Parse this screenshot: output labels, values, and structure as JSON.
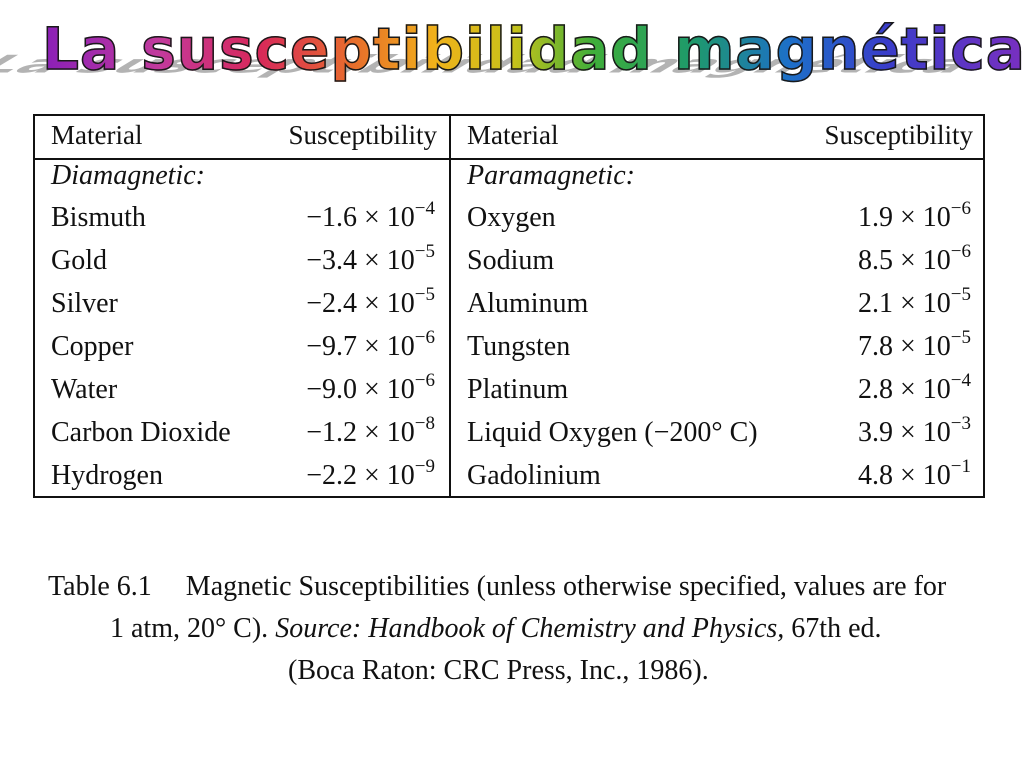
{
  "title": "La susceptibilidad magnética",
  "table": {
    "left": {
      "header_material": "Material",
      "header_susceptibility": "Susceptibility",
      "group": "Diamagnetic:",
      "rows": [
        {
          "material": "Bismuth",
          "mantissa": "−1.6 × 10",
          "exponent": "−4"
        },
        {
          "material": "Gold",
          "mantissa": "−3.4 × 10",
          "exponent": "−5"
        },
        {
          "material": "Silver",
          "mantissa": "−2.4 × 10",
          "exponent": "−5"
        },
        {
          "material": "Copper",
          "mantissa": "−9.7 × 10",
          "exponent": "−6"
        },
        {
          "material": "Water",
          "mantissa": "−9.0 × 10",
          "exponent": "−6"
        },
        {
          "material": "Carbon Dioxide",
          "mantissa": "−1.2 × 10",
          "exponent": "−8"
        },
        {
          "material": "Hydrogen",
          "mantissa": "−2.2 × 10",
          "exponent": "−9"
        }
      ]
    },
    "right": {
      "header_material": "Material",
      "header_susceptibility": "Susceptibility",
      "group": "Paramagnetic:",
      "rows": [
        {
          "material": "Oxygen",
          "mantissa": "1.9 × 10",
          "exponent": "−6"
        },
        {
          "material": "Sodium",
          "mantissa": "8.5 × 10",
          "exponent": "−6"
        },
        {
          "material": "Aluminum",
          "mantissa": "2.1 × 10",
          "exponent": "−5"
        },
        {
          "material": "Tungsten",
          "mantissa": "7.8 × 10",
          "exponent": "−5"
        },
        {
          "material": "Platinum",
          "mantissa": "2.8 × 10",
          "exponent": "−4"
        },
        {
          "material": "Liquid Oxygen (−200° C)",
          "mantissa": "3.9 × 10",
          "exponent": "−3"
        },
        {
          "material": "Gadolinium",
          "mantissa": "4.8 × 10",
          "exponent": "−1"
        }
      ]
    }
  },
  "caption": {
    "table_number": "Table 6.1",
    "line1": "Magnetic Susceptibilities (unless otherwise specified, values are for",
    "line2_a": "1 atm, 20° C).",
    "line2_source": "Source: Handbook of Chemistry and Physics,",
    "line2_b": "67th ed.",
    "line3": "(Boca Raton: CRC Press, Inc., 1986)."
  }
}
